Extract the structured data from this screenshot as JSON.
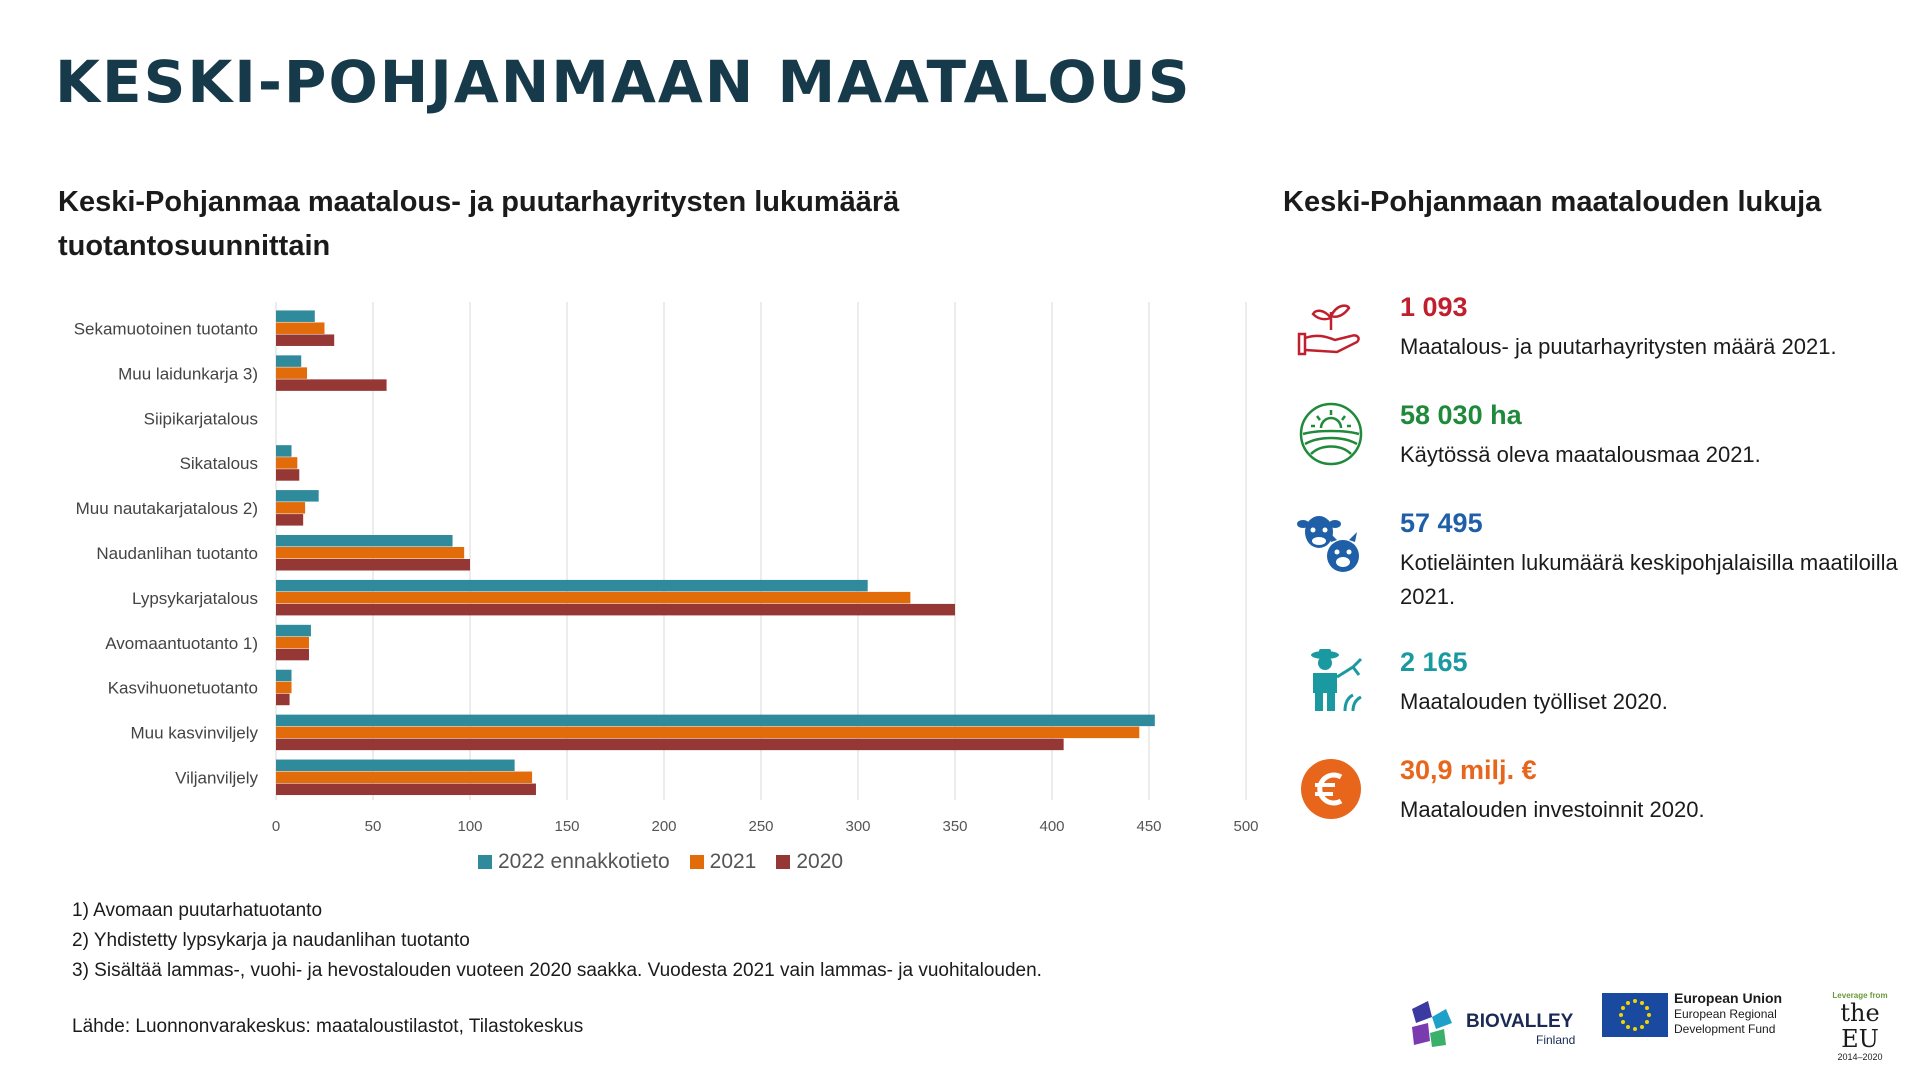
{
  "title": "KESKI-POHJANMAAN MAATALOUS",
  "chart_data": {
    "type": "bar",
    "orientation": "horizontal",
    "title": "Keski-Pohjanmaa maatalous- ja puutarhayritysten lukumäärä tuotantosuunnittain",
    "categories": [
      "Sekamuotoinen tuotanto",
      "Muu laidunkarja 3)",
      "Siipikarjatalous",
      "Sikatalous",
      "Muu nautakarjatalous 2)",
      "Naudanlihan tuotanto",
      "Lypsykarjatalous",
      "Avomaantuotanto 1)",
      "Kasvihuonetuotanto",
      "Muu kasvinviljely",
      "Viljanviljely"
    ],
    "series": [
      {
        "name": "2022 ennakkotieto",
        "color": "#2f8a9c",
        "values": [
          20,
          13,
          0,
          8,
          22,
          91,
          305,
          18,
          8,
          453,
          123
        ]
      },
      {
        "name": "2021",
        "color": "#e36c0a",
        "values": [
          25,
          16,
          0,
          11,
          15,
          97,
          327,
          17,
          8,
          445,
          132
        ]
      },
      {
        "name": "2020",
        "color": "#953735",
        "values": [
          30,
          57,
          0,
          12,
          14,
          100,
          350,
          17,
          7,
          406,
          134
        ]
      }
    ],
    "xlim": [
      0,
      500
    ],
    "xticks": [
      "0",
      "50",
      "100",
      "150",
      "200",
      "250",
      "300",
      "350",
      "400",
      "450",
      "500"
    ],
    "grid": true,
    "legend": "bottom"
  },
  "footnotes": [
    "1) Avomaan puutarhatuotanto",
    "2) Yhdistetty lypsykarja ja naudanlihan tuotanto",
    "3) Sisältää lammas-, vuohi- ja hevostalouden vuoteen 2020 saakka. Vuodesta 2021 vain lammas- ja vuohitalouden."
  ],
  "source": "Lähde: Luonnonvarakeskus: maataloustilastot, Tilastokeskus",
  "stats": {
    "title": "Keski-Pohjanmaan maatalouden lukuja",
    "items": [
      {
        "value": "1 093",
        "desc": "Maatalous- ja puutarhayritysten määrä 2021.",
        "color": "#c0202e",
        "icon": "hand-plant-icon"
      },
      {
        "value": "58 030 ha",
        "desc": "Käytössä oleva maatalousmaa 2021.",
        "color": "#1f8a3a",
        "icon": "field-sun-icon"
      },
      {
        "value": "57 495",
        "desc": "Kotieläinten lukumäärä keskipohjalaisilla maatiloilla 2021.",
        "color": "#1f5fa8",
        "icon": "livestock-icon"
      },
      {
        "value": "2 165",
        "desc": "Maatalouden työlliset 2020.",
        "color": "#1a9aa0",
        "icon": "farmer-icon"
      },
      {
        "value": "30,9 milj. €",
        "desc": "Maatalouden investoinnit 2020.",
        "color": "#e8661c",
        "icon": "euro-icon"
      }
    ]
  },
  "logos": {
    "biovalley": "BIOVALLEY",
    "biovalley_sub": "Finland",
    "eu_title": "European Union",
    "eu_line1": "European Regional",
    "eu_line2": "Development Fund",
    "leverage_small": "Leverage from",
    "leverage_big": "the EU",
    "leverage_years": "2014–2020"
  }
}
